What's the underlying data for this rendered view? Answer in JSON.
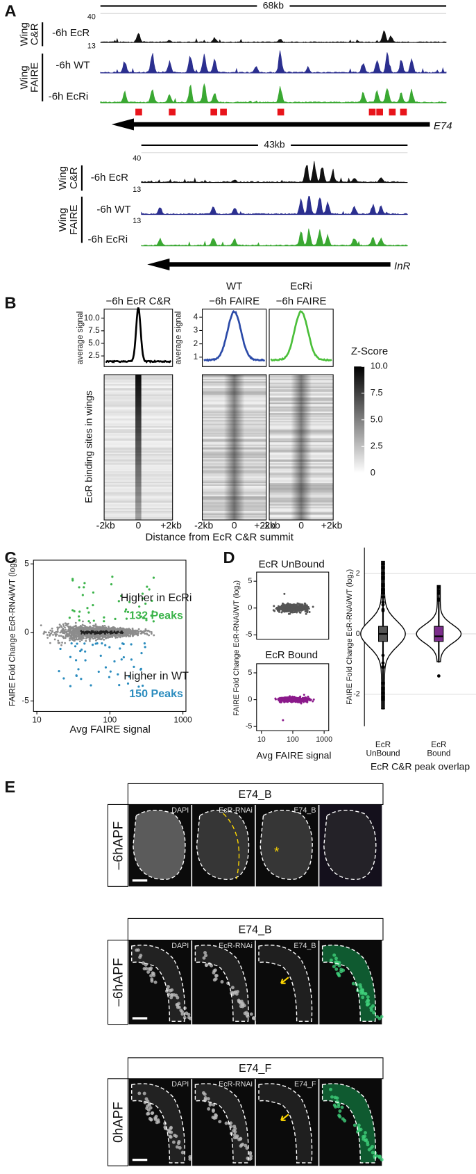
{
  "panel_labels": [
    "A",
    "B",
    "C",
    "D",
    "E"
  ],
  "panel_a": {
    "regions": [
      {
        "scale": "68kb",
        "gene": "E74",
        "tracks": [
          {
            "label": "-6h EcR",
            "max": 40
          },
          {
            "label": "-6h WT",
            "max": 13
          },
          {
            "label": "-6h EcRi"
          }
        ]
      },
      {
        "scale": "43kb",
        "gene": "InR",
        "tracks": [
          {
            "label": "-6h EcR",
            "max": 40
          },
          {
            "label": "-6h WT",
            "max": 13
          },
          {
            "label": "-6h EcRi",
            "max": 13
          }
        ]
      }
    ],
    "groups": [
      [
        "Wing",
        "C&R"
      ],
      [
        "Wing",
        "FAIRE"
      ]
    ]
  },
  "panel_b": {
    "profiles": [
      {
        "title": [
          "−6h EcR C&R"
        ],
        "ylabel": "average signal",
        "ylim": [
          0.4,
          11.8
        ],
        "yticks": [
          2.5,
          {
            "value": 5,
            "label": "5.0"
          },
          7.5,
          {
            "value": 10,
            "label": "10.0"
          }
        ]
      },
      {
        "title": [
          "WT",
          "−6h FAIRE"
        ],
        "ylabel": "average signal",
        "ylim": [
          0.3,
          4.6
        ],
        "yticks": [
          1,
          2,
          3,
          4
        ]
      },
      {
        "title": [
          "EcRi",
          "−6h FAIRE"
        ]
      }
    ],
    "heatmap": {
      "ylabel": "EcR binding sites in wings",
      "xticks": [
        "-2kb",
        "0",
        "+2kb"
      ],
      "xlabel": "Distance from EcR C&R summit"
    },
    "zscore": {
      "title": "Z-Score",
      "lim": [
        0,
        10
      ],
      "ticks": [
        0,
        2.5,
        {
          "value": 5,
          "label": "5.0"
        },
        7.5,
        {
          "value": 10,
          "label": "10.0"
        }
      ]
    }
  },
  "panel_c": {
    "ylabel": {
      "text": "FAIRE Fold Change EcR-RNAi/WT (log",
      "sub": "2",
      "end": ")"
    },
    "xlabel": "Avg FAIRE signal",
    "log_x": true,
    "xlim": [
      9,
      1100
    ],
    "xticks": [
      10,
      100,
      1000
    ],
    "ylim": [
      -5.76,
      5.27
    ],
    "yticks": [
      -5,
      0,
      5
    ],
    "up": {
      "label": "Higher in EcRi",
      "count": "132 Peaks",
      "color": "#3cb44b"
    },
    "down": {
      "label": "Higher in WT",
      "count": "150 Peaks",
      "color": "#2b8cbe"
    }
  },
  "panel_d": {
    "scatters": [
      {
        "title": "EcR UnBound",
        "color": "#555555"
      },
      {
        "title": "EcR Bound",
        "color": "#8b1a8b"
      }
    ],
    "ylabel": {
      "text": "FAIRE Fold Change EcR-RNAi/WT (log",
      "sub": "2",
      "end": ")"
    },
    "xlabel": "Avg FAIRE signal",
    "ylim": [
      -5.8,
      6.7
    ],
    "yticks": [
      -5,
      0,
      5
    ],
    "log_x": true,
    "xlim": [
      7,
      1400
    ],
    "xticks": [
      10,
      100,
      1000
    ],
    "violin": {
      "ylim": [
        -3.06,
        2.86
      ],
      "yticks": [
        -2,
        0,
        2
      ],
      "categories": [
        [
          "EcR",
          "UnBound"
        ],
        [
          "EcR",
          "Bound"
        ]
      ],
      "colors": [
        "#555555",
        "#7b2d8b"
      ],
      "xlabel": "EcR C&R peak overlap",
      "grid": true
    }
  },
  "panel_e": {
    "rows": [
      {
        "title": "E74_B",
        "stage": "–6hAPF",
        "channels": [
          "DAPI",
          "EcR-RNAi",
          "E74_B"
        ]
      },
      {
        "title": "E74_B",
        "stage": "–6hAPF",
        "channels": [
          "DAPI",
          "EcR-RNAi",
          "E74_B"
        ]
      },
      {
        "title": "E74_F",
        "stage": "0hAPF",
        "channels": [
          "DAPI",
          "EcR-RNAi",
          "E74_F"
        ]
      }
    ]
  }
}
